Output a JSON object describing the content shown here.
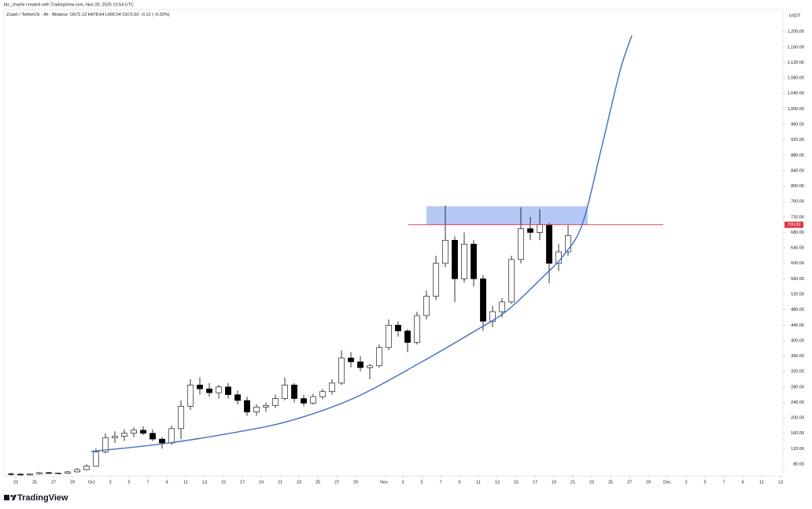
{
  "header": {
    "credit": "btc_charlie created with TradingView.com, Nov 20, 2025 10:54 UTC",
    "symbol": "Zcash / TetherUS · 4h · Binance",
    "ohlc": "O672.13 H678.64 L665.54 C672.03 −0.12 (−0.02%)",
    "logo": "TradingView"
  },
  "chart_data": {
    "type": "candlestick",
    "unit": "USDT",
    "up_color": "#ffffff",
    "down_color": "#000000",
    "wick_color": "#000000",
    "grid": false,
    "x": [
      "2025-09-22",
      "2025-09-23",
      "2025-09-24",
      "2025-09-25",
      "2025-09-26",
      "2025-09-27",
      "2025-09-28",
      "2025-09-29",
      "2025-09-30",
      "2025-10-01",
      "2025-10-02",
      "2025-10-03",
      "2025-10-04",
      "2025-10-05",
      "2025-10-06",
      "2025-10-07",
      "2025-10-08",
      "2025-10-09",
      "2025-10-10",
      "2025-10-11",
      "2025-10-12",
      "2025-10-13",
      "2025-10-14",
      "2025-10-15",
      "2025-10-16",
      "2025-10-17",
      "2025-10-18",
      "2025-10-19",
      "2025-10-20",
      "2025-10-21",
      "2025-10-22",
      "2025-10-23",
      "2025-10-24",
      "2025-10-25",
      "2025-10-26",
      "2025-10-27",
      "2025-10-28",
      "2025-10-29",
      "2025-10-30",
      "2025-10-31",
      "2025-11-01",
      "2025-11-02",
      "2025-11-03",
      "2025-11-04",
      "2025-11-05",
      "2025-11-06",
      "2025-11-07",
      "2025-11-08",
      "2025-11-09",
      "2025-11-10",
      "2025-11-11",
      "2025-11-12",
      "2025-11-13",
      "2025-11-14",
      "2025-11-15",
      "2025-11-16",
      "2025-11-17",
      "2025-11-18",
      "2025-11-19",
      "2025-11-20"
    ],
    "open": [
      55,
      54,
      52,
      55,
      58,
      56,
      57,
      60,
      66,
      75,
      112,
      148,
      152,
      160,
      168,
      160,
      145,
      135,
      172,
      230,
      285,
      275,
      265,
      280,
      260,
      245,
      215,
      228,
      232,
      250,
      285,
      250,
      238,
      255,
      268,
      290,
      355,
      345,
      330,
      335,
      382,
      440,
      425,
      395,
      465,
      515,
      600,
      660,
      560,
      650,
      560,
      450,
      475,
      500,
      610,
      690,
      680,
      700,
      600,
      630
    ],
    "high": [
      58,
      57,
      56,
      60,
      60,
      59,
      62,
      70,
      80,
      120,
      160,
      165,
      170,
      175,
      178,
      170,
      150,
      180,
      245,
      300,
      305,
      290,
      285,
      290,
      270,
      255,
      235,
      240,
      260,
      305,
      290,
      260,
      262,
      275,
      300,
      375,
      370,
      360,
      340,
      390,
      455,
      450,
      430,
      475,
      530,
      620,
      750,
      670,
      680,
      660,
      570,
      490,
      510,
      620,
      745,
      720,
      740,
      705,
      650,
      700
    ],
    "low": [
      50,
      51,
      50,
      53,
      55,
      54,
      55,
      58,
      64,
      74,
      108,
      135,
      140,
      150,
      155,
      140,
      120,
      130,
      145,
      220,
      260,
      255,
      250,
      250,
      235,
      205,
      205,
      215,
      225,
      245,
      240,
      230,
      235,
      248,
      260,
      285,
      330,
      320,
      300,
      330,
      375,
      410,
      370,
      390,
      455,
      505,
      590,
      500,
      550,
      540,
      425,
      435,
      460,
      495,
      600,
      660,
      660,
      548,
      580,
      620
    ],
    "close": [
      54,
      52,
      55,
      58,
      56,
      57,
      60,
      66,
      75,
      112,
      148,
      152,
      160,
      168,
      160,
      145,
      135,
      172,
      230,
      285,
      275,
      265,
      280,
      260,
      245,
      215,
      228,
      232,
      250,
      285,
      250,
      238,
      255,
      268,
      290,
      355,
      345,
      330,
      335,
      382,
      440,
      425,
      395,
      465,
      515,
      600,
      660,
      560,
      650,
      560,
      450,
      475,
      500,
      610,
      690,
      680,
      700,
      600,
      630,
      672.03
    ],
    "trend_curve": {
      "color": "#3f6fc6",
      "x": [
        "2025-10-01",
        "2025-10-08",
        "2025-10-15",
        "2025-10-22",
        "2025-10-29",
        "2025-11-05",
        "2025-11-10",
        "2025-11-14",
        "2025-11-18",
        "2025-11-20",
        "2025-11-22",
        "2025-11-24",
        "2025-11-26",
        "2025-11-27T06:00"
      ],
      "values": [
        113,
        131,
        157,
        192,
        253,
        345,
        416,
        477,
        569,
        620,
        701,
        895,
        1098,
        1190
      ]
    },
    "zone": {
      "color": "#a9bff5",
      "x": [
        "2025-11-05T12:00",
        "2025-11-22T14:00"
      ],
      "values": [
        700,
        748
      ]
    },
    "level": {
      "color": "#e0364a",
      "x": [
        "2025-11-03T14:00",
        "2025-11-30T14:00"
      ],
      "value": 700,
      "label": "700.00"
    },
    "xlim": [
      "2025-09-21T18:00",
      "2025-12-13T06:00"
    ],
    "xticks": [
      {
        "value": "2025-09-23",
        "label": "23"
      },
      {
        "value": "2025-09-25",
        "label": "25"
      },
      {
        "value": "2025-09-27",
        "label": "27"
      },
      {
        "value": "2025-09-29",
        "label": "29"
      },
      {
        "value": "2025-10-01",
        "label": "Oct"
      },
      {
        "value": "2025-10-03",
        "label": "3"
      },
      {
        "value": "2025-10-05",
        "label": "5"
      },
      {
        "value": "2025-10-07",
        "label": "7"
      },
      {
        "value": "2025-10-09",
        "label": "9"
      },
      {
        "value": "2025-10-11",
        "label": "11"
      },
      {
        "value": "2025-10-13",
        "label": "13"
      },
      {
        "value": "2025-10-15",
        "label": "15"
      },
      {
        "value": "2025-10-17",
        "label": "17"
      },
      {
        "value": "2025-10-19",
        "label": "19"
      },
      {
        "value": "2025-10-21",
        "label": "21"
      },
      {
        "value": "2025-10-23",
        "label": "23"
      },
      {
        "value": "2025-10-25",
        "label": "25"
      },
      {
        "value": "2025-10-27",
        "label": "27"
      },
      {
        "value": "2025-10-29",
        "label": "29"
      },
      {
        "value": "2025-11-01",
        "label": "Nov"
      },
      {
        "value": "2025-11-03",
        "label": "3"
      },
      {
        "value": "2025-11-05",
        "label": "5"
      },
      {
        "value": "2025-11-07",
        "label": "7"
      },
      {
        "value": "2025-11-09",
        "label": "9"
      },
      {
        "value": "2025-11-11",
        "label": "11"
      },
      {
        "value": "2025-11-13",
        "label": "13"
      },
      {
        "value": "2025-11-15",
        "label": "15"
      },
      {
        "value": "2025-11-17",
        "label": "17"
      },
      {
        "value": "2025-11-19",
        "label": "19"
      },
      {
        "value": "2025-11-21",
        "label": "21"
      },
      {
        "value": "2025-11-23",
        "label": "23"
      },
      {
        "value": "2025-11-25",
        "label": "25"
      },
      {
        "value": "2025-11-27",
        "label": "27"
      },
      {
        "value": "2025-11-29",
        "label": "29"
      },
      {
        "value": "2025-12-01",
        "label": "Dec"
      },
      {
        "value": "2025-12-03",
        "label": "3"
      },
      {
        "value": "2025-12-05",
        "label": "5"
      },
      {
        "value": "2025-12-07",
        "label": "7"
      },
      {
        "value": "2025-12-09",
        "label": "9"
      },
      {
        "value": "2025-12-11",
        "label": "11"
      },
      {
        "value": "2025-12-13",
        "label": "13"
      }
    ],
    "ylim": [
      49.5,
      1257.5
    ],
    "yticks": [
      {
        "value": 80,
        "label": "80.00"
      },
      {
        "value": 120,
        "label": "120.00"
      },
      {
        "value": 160,
        "label": "160.00"
      },
      {
        "value": 200,
        "label": "200.00"
      },
      {
        "value": 240,
        "label": "240.00"
      },
      {
        "value": 280,
        "label": "280.00"
      },
      {
        "value": 320,
        "label": "320.00"
      },
      {
        "value": 360,
        "label": "360.00"
      },
      {
        "value": 400,
        "label": "400.00"
      },
      {
        "value": 440,
        "label": "440.00"
      },
      {
        "value": 480,
        "label": "480.00"
      },
      {
        "value": 520,
        "label": "520.00"
      },
      {
        "value": 560,
        "label": "560.00"
      },
      {
        "value": 600,
        "label": "600.00"
      },
      {
        "value": 640,
        "label": "640.00"
      },
      {
        "value": 680,
        "label": "680.00"
      },
      {
        "value": 720,
        "label": "720.00"
      },
      {
        "value": 760,
        "label": "760.00"
      },
      {
        "value": 800,
        "label": "800.00"
      },
      {
        "value": 840,
        "label": "840.00"
      },
      {
        "value": 880,
        "label": "880.00"
      },
      {
        "value": 920,
        "label": "920.00"
      },
      {
        "value": 960,
        "label": "960.00"
      },
      {
        "value": 1000,
        "label": "1,000.00"
      },
      {
        "value": 1040,
        "label": "1,040.00"
      },
      {
        "value": 1080,
        "label": "1,080.00"
      },
      {
        "value": 1120,
        "label": "1,120.00"
      },
      {
        "value": 1160,
        "label": "1,160.00"
      },
      {
        "value": 1200,
        "label": "1,200.00"
      }
    ]
  }
}
